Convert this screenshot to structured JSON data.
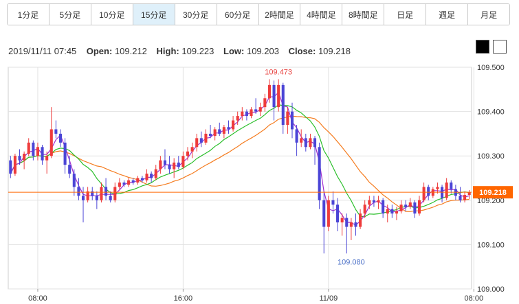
{
  "tabs": [
    {
      "label": "1分足",
      "active": false
    },
    {
      "label": "5分足",
      "active": false
    },
    {
      "label": "10分足",
      "active": false
    },
    {
      "label": "15分足",
      "active": true
    },
    {
      "label": "30分足",
      "active": false
    },
    {
      "label": "60分足",
      "active": false
    },
    {
      "label": "2時間足",
      "active": false
    },
    {
      "label": "4時間足",
      "active": false
    },
    {
      "label": "8時間足",
      "active": false
    },
    {
      "label": "日足",
      "active": false
    },
    {
      "label": "週足",
      "active": false
    },
    {
      "label": "月足",
      "active": false
    }
  ],
  "ohlc": {
    "datetime": "2019/11/11 07:45",
    "open_label": "Open:",
    "open": "109.212",
    "high_label": "High:",
    "high": "109.223",
    "low_label": "Low:",
    "low": "109.203",
    "close_label": "Close:",
    "close": "109.218"
  },
  "theme": {
    "dark_color": "#000000",
    "light_color": "#ffffff"
  },
  "chart_data": {
    "type": "candlestick",
    "ylim": [
      109.0,
      109.5
    ],
    "y_ticks": [
      "109.000",
      "109.100",
      "109.200",
      "109.300",
      "109.400",
      "109.500"
    ],
    "x_ticks": [
      {
        "label": "08:00",
        "index": 6
      },
      {
        "label": "16:00",
        "index": 38
      },
      {
        "label": "11/09",
        "index": 70
      },
      {
        "label": "08:00",
        "index": 102
      }
    ],
    "grid": true,
    "current_price": {
      "value": 109.218,
      "label": "109.218",
      "color": "#ff6600"
    },
    "annotations": [
      {
        "text": "109.473",
        "index": 59,
        "value": 109.473,
        "position": "above",
        "color": "#e8423f"
      },
      {
        "text": "109.080",
        "index": 75,
        "value": 109.08,
        "position": "below",
        "color": "#4a6fc7"
      }
    ],
    "colors": {
      "up": "#ee3b3b",
      "down": "#4b45d6",
      "ma_short": "#a12fd0",
      "ma_mid": "#2bbf2b",
      "ma_long": "#f57c1f"
    },
    "candles": [
      [
        109.29,
        109.3,
        109.25,
        109.26
      ],
      [
        109.26,
        109.305,
        109.255,
        109.3
      ],
      [
        109.3,
        109.315,
        109.28,
        109.29
      ],
      [
        109.29,
        109.31,
        109.27,
        109.305
      ],
      [
        109.305,
        109.34,
        109.3,
        109.33
      ],
      [
        109.33,
        109.335,
        109.29,
        109.3
      ],
      [
        109.3,
        109.33,
        109.29,
        109.32
      ],
      [
        109.32,
        109.325,
        109.28,
        109.29
      ],
      [
        109.29,
        109.31,
        109.26,
        109.3
      ],
      [
        109.3,
        109.41,
        109.295,
        109.36
      ],
      [
        109.36,
        109.38,
        109.34,
        109.35
      ],
      [
        109.35,
        109.36,
        109.32,
        109.33
      ],
      [
        109.33,
        109.34,
        109.26,
        109.28
      ],
      [
        109.28,
        109.3,
        109.25,
        109.26
      ],
      [
        109.26,
        109.27,
        109.21,
        109.23
      ],
      [
        109.23,
        109.25,
        109.2,
        109.21
      ],
      [
        109.21,
        109.23,
        109.15,
        109.2
      ],
      [
        109.2,
        109.23,
        109.195,
        109.22
      ],
      [
        109.22,
        109.23,
        109.2,
        109.21
      ],
      [
        109.21,
        109.22,
        109.18,
        109.2
      ],
      [
        109.2,
        109.24,
        109.195,
        109.23
      ],
      [
        109.23,
        109.25,
        109.2,
        109.21
      ],
      [
        109.21,
        109.22,
        109.195,
        109.2
      ],
      [
        109.2,
        109.24,
        109.195,
        109.23
      ],
      [
        109.23,
        109.25,
        109.225,
        109.24
      ],
      [
        109.24,
        109.245,
        109.23,
        109.235
      ],
      [
        109.235,
        109.25,
        109.23,
        109.245
      ],
      [
        109.245,
        109.25,
        109.235,
        109.24
      ],
      [
        109.24,
        109.255,
        109.235,
        109.25
      ],
      [
        109.25,
        109.255,
        109.24,
        109.245
      ],
      [
        109.245,
        109.27,
        109.24,
        109.26
      ],
      [
        109.26,
        109.265,
        109.24,
        109.25
      ],
      [
        109.25,
        109.28,
        109.245,
        109.27
      ],
      [
        109.27,
        109.3,
        109.26,
        109.29
      ],
      [
        109.29,
        109.315,
        109.27,
        109.28
      ],
      [
        109.28,
        109.3,
        109.26,
        109.27
      ],
      [
        109.27,
        109.295,
        109.25,
        109.285
      ],
      [
        109.285,
        109.3,
        109.27,
        109.275
      ],
      [
        109.275,
        109.31,
        109.27,
        109.3
      ],
      [
        109.3,
        109.32,
        109.29,
        109.31
      ],
      [
        109.31,
        109.33,
        109.295,
        109.32
      ],
      [
        109.32,
        109.35,
        109.31,
        109.34
      ],
      [
        109.34,
        109.355,
        109.32,
        109.33
      ],
      [
        109.33,
        109.36,
        109.325,
        109.35
      ],
      [
        109.35,
        109.37,
        109.34,
        109.345
      ],
      [
        109.345,
        109.365,
        109.335,
        109.36
      ],
      [
        109.36,
        109.375,
        109.345,
        109.35
      ],
      [
        109.35,
        109.37,
        109.34,
        109.365
      ],
      [
        109.365,
        109.38,
        109.35,
        109.36
      ],
      [
        109.36,
        109.39,
        109.355,
        109.38
      ],
      [
        109.38,
        109.4,
        109.37,
        109.39
      ],
      [
        109.39,
        109.41,
        109.38,
        109.4
      ],
      [
        109.4,
        109.405,
        109.38,
        109.39
      ],
      [
        109.39,
        109.41,
        109.385,
        109.405
      ],
      [
        109.405,
        109.43,
        109.395,
        109.4
      ],
      [
        109.4,
        109.42,
        109.39,
        109.41
      ],
      [
        109.41,
        109.44,
        109.4,
        109.43
      ],
      [
        109.43,
        109.473,
        109.42,
        109.46
      ],
      [
        109.46,
        109.47,
        109.38,
        109.41
      ],
      [
        109.41,
        109.473,
        109.4,
        109.46
      ],
      [
        109.46,
        109.465,
        109.35,
        109.37
      ],
      [
        109.37,
        109.41,
        109.35,
        109.4
      ],
      [
        109.4,
        109.42,
        109.34,
        109.36
      ],
      [
        109.36,
        109.37,
        109.3,
        109.33
      ],
      [
        109.33,
        109.36,
        109.32,
        109.34
      ],
      [
        109.34,
        109.35,
        109.31,
        109.32
      ],
      [
        109.32,
        109.35,
        109.315,
        109.34
      ],
      [
        109.34,
        109.345,
        109.28,
        109.32
      ],
      [
        109.32,
        109.33,
        109.18,
        109.2
      ],
      [
        109.2,
        109.22,
        109.08,
        109.14
      ],
      [
        109.14,
        109.21,
        109.13,
        109.2
      ],
      [
        109.2,
        109.22,
        109.17,
        109.19
      ],
      [
        109.19,
        109.205,
        109.13,
        109.15
      ],
      [
        109.15,
        109.17,
        109.12,
        109.16
      ],
      [
        109.16,
        109.17,
        109.08,
        109.14
      ],
      [
        109.14,
        109.16,
        109.11,
        109.15
      ],
      [
        109.15,
        109.17,
        109.12,
        109.14
      ],
      [
        109.14,
        109.18,
        109.135,
        109.17
      ],
      [
        109.17,
        109.2,
        109.16,
        109.19
      ],
      [
        109.19,
        109.21,
        109.18,
        109.2
      ],
      [
        109.2,
        109.21,
        109.185,
        109.195
      ],
      [
        109.195,
        109.21,
        109.18,
        109.2
      ],
      [
        109.2,
        109.205,
        109.16,
        109.17
      ],
      [
        109.17,
        109.19,
        109.15,
        109.18
      ],
      [
        109.18,
        109.19,
        109.16,
        109.17
      ],
      [
        109.17,
        109.185,
        109.155,
        109.175
      ],
      [
        109.175,
        109.2,
        109.17,
        109.19
      ],
      [
        109.19,
        109.2,
        109.175,
        109.185
      ],
      [
        109.185,
        109.205,
        109.18,
        109.195
      ],
      [
        109.195,
        109.2,
        109.16,
        109.17
      ],
      [
        109.17,
        109.21,
        109.165,
        109.2
      ],
      [
        109.2,
        109.24,
        109.195,
        109.23
      ],
      [
        109.23,
        109.235,
        109.2,
        109.21
      ],
      [
        109.21,
        109.23,
        109.205,
        109.225
      ],
      [
        109.225,
        109.24,
        109.215,
        109.23
      ],
      [
        109.23,
        109.235,
        109.195,
        109.205
      ],
      [
        109.205,
        109.25,
        109.2,
        109.24
      ],
      [
        109.24,
        109.245,
        109.215,
        109.225
      ],
      [
        109.225,
        109.235,
        109.2,
        109.21
      ],
      [
        109.21,
        109.23,
        109.195,
        109.2
      ],
      [
        109.2,
        109.22,
        109.195,
        109.212
      ],
      [
        109.212,
        109.223,
        109.203,
        109.218
      ]
    ]
  }
}
